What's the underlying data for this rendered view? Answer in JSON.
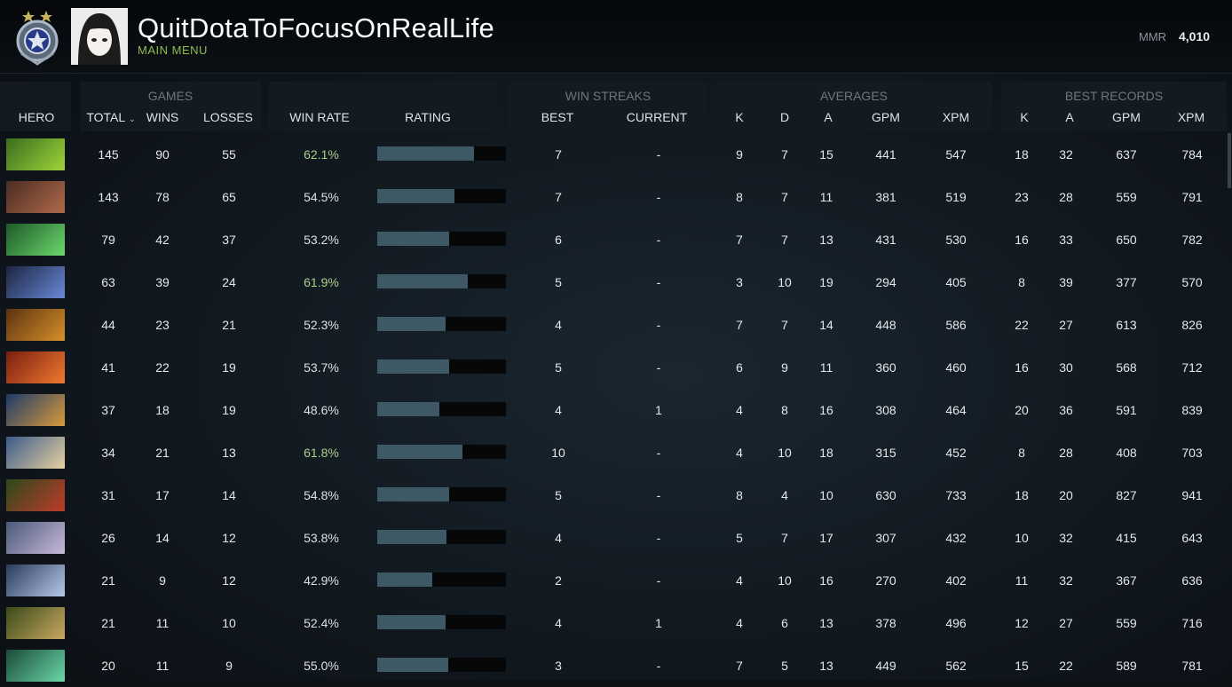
{
  "header": {
    "player_name": "QuitDotaToFocusOnRealLife",
    "subtitle": "MAIN MENU",
    "mmr_label": "MMR",
    "mmr_value": "4,010",
    "medal_icon": "ancient-medal-icon",
    "avatar_icon": "player-avatar"
  },
  "groups": {
    "games": "GAMES",
    "win_streaks": "WIN STREAKS",
    "averages": "AVERAGES",
    "best_records": "BEST RECORDS"
  },
  "columns": {
    "hero": "HERO",
    "total": "TOTAL",
    "wins": "WINS",
    "losses": "LOSSES",
    "win_rate": "WIN RATE",
    "rating": "RATING",
    "best": "BEST",
    "current": "CURRENT",
    "k": "K",
    "d": "D",
    "a": "A",
    "gpm": "GPM",
    "xpm": "XPM",
    "best_k": "K",
    "best_a": "A",
    "best_gpm": "GPM",
    "best_xpm": "XPM"
  },
  "sort_icon": "chevron-down-icon",
  "colors": {
    "accent_green": "#8fbf4f",
    "high_winrate": "#a6d089",
    "rating_bar": "#3f5866"
  },
  "rows": [
    {
      "hero_color": [
        "#3a6d1e",
        "#9fd43a"
      ],
      "total": "145",
      "wins": "90",
      "losses": "55",
      "win_rate": "62.1%",
      "high": true,
      "rating": 0.75,
      "best": "7",
      "current": "-",
      "k": "9",
      "d": "7",
      "a": "15",
      "gpm": "441",
      "xpm": "547",
      "bk": "18",
      "ba": "32",
      "bgpm": "637",
      "bxpm": "784"
    },
    {
      "hero_color": [
        "#4a2c22",
        "#b06a4a"
      ],
      "total": "143",
      "wins": "78",
      "losses": "65",
      "win_rate": "54.5%",
      "high": false,
      "rating": 0.6,
      "best": "7",
      "current": "-",
      "k": "8",
      "d": "7",
      "a": "11",
      "gpm": "381",
      "xpm": "519",
      "bk": "23",
      "ba": "28",
      "bgpm": "559",
      "bxpm": "791"
    },
    {
      "hero_color": [
        "#1f5a2a",
        "#6ad86a"
      ],
      "total": "79",
      "wins": "42",
      "losses": "37",
      "win_rate": "53.2%",
      "high": false,
      "rating": 0.56,
      "best": "6",
      "current": "-",
      "k": "7",
      "d": "7",
      "a": "13",
      "gpm": "431",
      "xpm": "530",
      "bk": "16",
      "ba": "33",
      "bgpm": "650",
      "bxpm": "782"
    },
    {
      "hero_color": [
        "#1c2440",
        "#6a8ad8"
      ],
      "total": "63",
      "wins": "39",
      "losses": "24",
      "win_rate": "61.9%",
      "high": true,
      "rating": 0.7,
      "best": "5",
      "current": "-",
      "k": "3",
      "d": "10",
      "a": "19",
      "gpm": "294",
      "xpm": "405",
      "bk": "8",
      "ba": "39",
      "bgpm": "377",
      "bxpm": "570"
    },
    {
      "hero_color": [
        "#5a3210",
        "#d8902a"
      ],
      "total": "44",
      "wins": "23",
      "losses": "21",
      "win_rate": "52.3%",
      "high": false,
      "rating": 0.53,
      "best": "4",
      "current": "-",
      "k": "7",
      "d": "7",
      "a": "14",
      "gpm": "448",
      "xpm": "586",
      "bk": "22",
      "ba": "27",
      "bgpm": "613",
      "bxpm": "826"
    },
    {
      "hero_color": [
        "#7a1e10",
        "#f07a30"
      ],
      "total": "41",
      "wins": "22",
      "losses": "19",
      "win_rate": "53.7%",
      "high": false,
      "rating": 0.56,
      "best": "5",
      "current": "-",
      "k": "6",
      "d": "9",
      "a": "11",
      "gpm": "360",
      "xpm": "460",
      "bk": "16",
      "ba": "30",
      "bgpm": "568",
      "bxpm": "712"
    },
    {
      "hero_color": [
        "#1e3a6a",
        "#d89a3a"
      ],
      "total": "37",
      "wins": "18",
      "losses": "19",
      "win_rate": "48.6%",
      "high": false,
      "rating": 0.48,
      "best": "4",
      "current": "1",
      "k": "4",
      "d": "8",
      "a": "16",
      "gpm": "308",
      "xpm": "464",
      "bk": "20",
      "ba": "36",
      "bgpm": "591",
      "bxpm": "839"
    },
    {
      "hero_color": [
        "#3a5a8a",
        "#e8d2a0"
      ],
      "total": "34",
      "wins": "21",
      "losses": "13",
      "win_rate": "61.8%",
      "high": true,
      "rating": 0.66,
      "best": "10",
      "current": "-",
      "k": "4",
      "d": "10",
      "a": "18",
      "gpm": "315",
      "xpm": "452",
      "bk": "8",
      "ba": "28",
      "bgpm": "408",
      "bxpm": "703"
    },
    {
      "hero_color": [
        "#2a4a1a",
        "#c03a2a"
      ],
      "total": "31",
      "wins": "17",
      "losses": "14",
      "win_rate": "54.8%",
      "high": false,
      "rating": 0.56,
      "best": "5",
      "current": "-",
      "k": "8",
      "d": "4",
      "a": "10",
      "gpm": "630",
      "xpm": "733",
      "bk": "18",
      "ba": "20",
      "bgpm": "827",
      "bxpm": "941"
    },
    {
      "hero_color": [
        "#4a5a7a",
        "#c8b8d8"
      ],
      "total": "26",
      "wins": "14",
      "losses": "12",
      "win_rate": "53.8%",
      "high": false,
      "rating": 0.54,
      "best": "4",
      "current": "-",
      "k": "5",
      "d": "7",
      "a": "17",
      "gpm": "307",
      "xpm": "432",
      "bk": "10",
      "ba": "32",
      "bgpm": "415",
      "bxpm": "643"
    },
    {
      "hero_color": [
        "#2a3a5a",
        "#b8c8e8"
      ],
      "total": "21",
      "wins": "9",
      "losses": "12",
      "win_rate": "42.9%",
      "high": false,
      "rating": 0.43,
      "best": "2",
      "current": "-",
      "k": "4",
      "d": "10",
      "a": "16",
      "gpm": "270",
      "xpm": "402",
      "bk": "11",
      "ba": "32",
      "bgpm": "367",
      "bxpm": "636"
    },
    {
      "hero_color": [
        "#3a4a1a",
        "#c8a860"
      ],
      "total": "21",
      "wins": "11",
      "losses": "10",
      "win_rate": "52.4%",
      "high": false,
      "rating": 0.53,
      "best": "4",
      "current": "1",
      "k": "4",
      "d": "6",
      "a": "13",
      "gpm": "378",
      "xpm": "496",
      "bk": "12",
      "ba": "27",
      "bgpm": "559",
      "bxpm": "716"
    },
    {
      "hero_color": [
        "#1a4a3a",
        "#6ad8a8"
      ],
      "total": "20",
      "wins": "11",
      "losses": "9",
      "win_rate": "55.0%",
      "high": false,
      "rating": 0.55,
      "best": "3",
      "current": "-",
      "k": "7",
      "d": "5",
      "a": "13",
      "gpm": "449",
      "xpm": "562",
      "bk": "15",
      "ba": "22",
      "bgpm": "589",
      "bxpm": "781"
    }
  ]
}
